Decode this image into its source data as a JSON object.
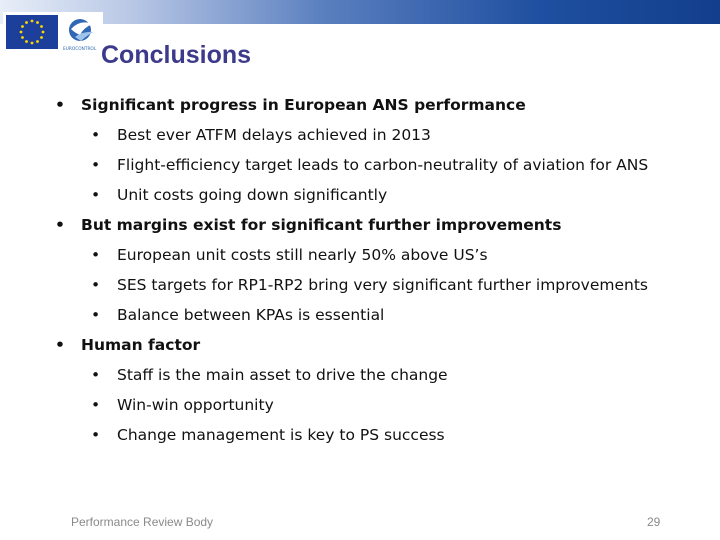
{
  "slide": {
    "title": "Conclusions",
    "bullet_glyph": "•",
    "items": [
      {
        "level": 1,
        "text": "Significant progress in European ANS performance"
      },
      {
        "level": 2,
        "text": "Best ever ATFM delays achieved in 2013"
      },
      {
        "level": 2,
        "text": "Flight-efficiency target leads to carbon-neutrality of aviation for ANS"
      },
      {
        "level": 2,
        "text": "Unit costs going down significantly"
      },
      {
        "level": 1,
        "text": "But margins exist for significant further improvements"
      },
      {
        "level": 2,
        "text": "European unit costs still nearly 50% above US’s"
      },
      {
        "level": 2,
        "text": "SES targets for RP1-RP2 bring very significant further improvements"
      },
      {
        "level": 2,
        "text": "Balance between KPAs is essential"
      },
      {
        "level": 1,
        "text": "Human factor"
      },
      {
        "level": 2,
        "text": "Staff is the main asset to drive the change"
      },
      {
        "level": 2,
        "text": "Win-win opportunity"
      },
      {
        "level": 2,
        "text": "Change management is key to PS success"
      }
    ]
  },
  "footer": {
    "left_text": "Performance Review Body",
    "page_number": "29"
  },
  "logos": [
    {
      "name": "eu-flag-icon"
    },
    {
      "name": "eurocontrol-logo",
      "text": "EUROCONTROL"
    }
  ],
  "colors": {
    "title": "#3d3a8c",
    "band_dark": "#123e8c",
    "flag_blue": "#1b3f9a",
    "flag_star": "#ffd700",
    "footer": "#8a8a8a"
  }
}
